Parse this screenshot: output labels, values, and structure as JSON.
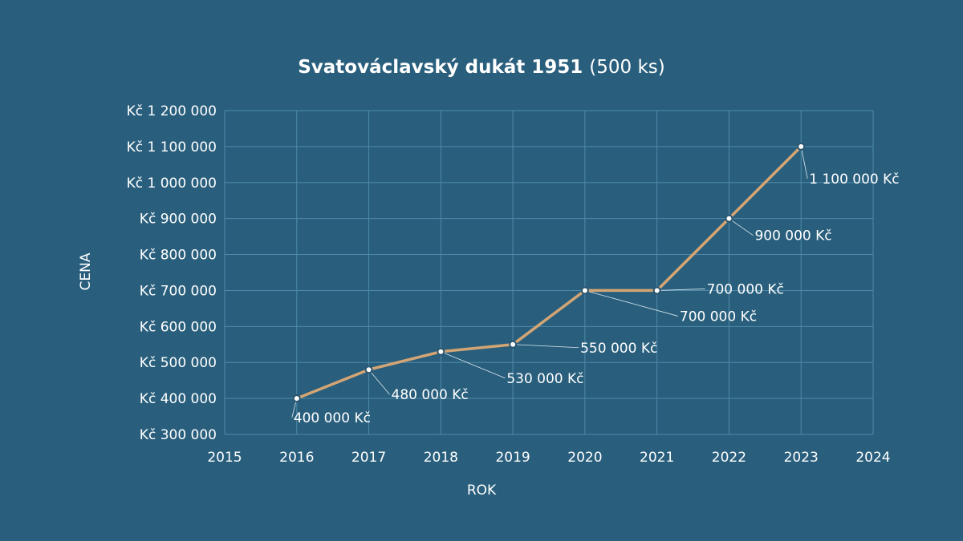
{
  "chart_data": {
    "type": "line",
    "title": "Svatováclavský dukát 1951",
    "subtitle": "(500 ks)",
    "xlabel": "ROK",
    "ylabel": "CENA",
    "xlim": [
      2015,
      2024
    ],
    "ylim": [
      300000,
      1200000
    ],
    "x_ticks": [
      "2015",
      "2016",
      "2017",
      "2018",
      "2019",
      "2020",
      "2021",
      "2022",
      "2023",
      "2024"
    ],
    "y_ticks": [
      "Kč 300 000",
      "Kč 400 000",
      "Kč 500 000",
      "Kč 600 000",
      "Kč 700 000",
      "Kč 800 000",
      "Kč 900 000",
      "Kč 1 000 000",
      "Kč 1 100 000",
      "Kč 1 200 000"
    ],
    "grid": true,
    "legend": "none",
    "line_color": "#d4a574",
    "series": [
      {
        "x": [
          2016,
          2017,
          2018,
          2019,
          2020,
          2021,
          2022,
          2023
        ],
        "values": [
          400000,
          480000,
          530000,
          550000,
          700000,
          700000,
          900000,
          1100000
        ],
        "labels": [
          "400 000 Kč",
          "480 000 Kč",
          "530 000 Kč",
          "550 000 Kč",
          "700 000 Kč",
          "700 000 Kč",
          "900 000 Kč",
          "1 100 000 Kč"
        ]
      }
    ]
  }
}
